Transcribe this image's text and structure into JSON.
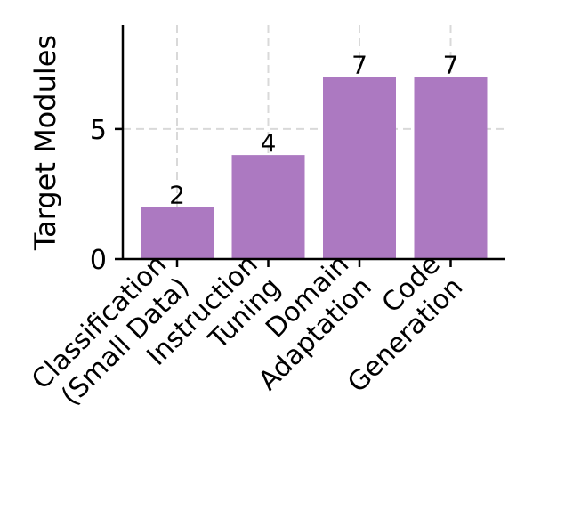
{
  "chart_data": {
    "type": "bar",
    "categories": [
      [
        "Classification",
        "(Small Data)"
      ],
      [
        "Instruction",
        "Tuning"
      ],
      [
        "Domain",
        "Adaptation"
      ],
      [
        "Code",
        "Generation"
      ]
    ],
    "values": [
      2,
      4,
      7,
      7
    ],
    "title": "",
    "xlabel": "",
    "ylabel": "Target Modules",
    "ylim": [
      0,
      9
    ],
    "yticks": [
      0,
      5
    ],
    "grid": true,
    "bar_color": "#ac79c1"
  }
}
